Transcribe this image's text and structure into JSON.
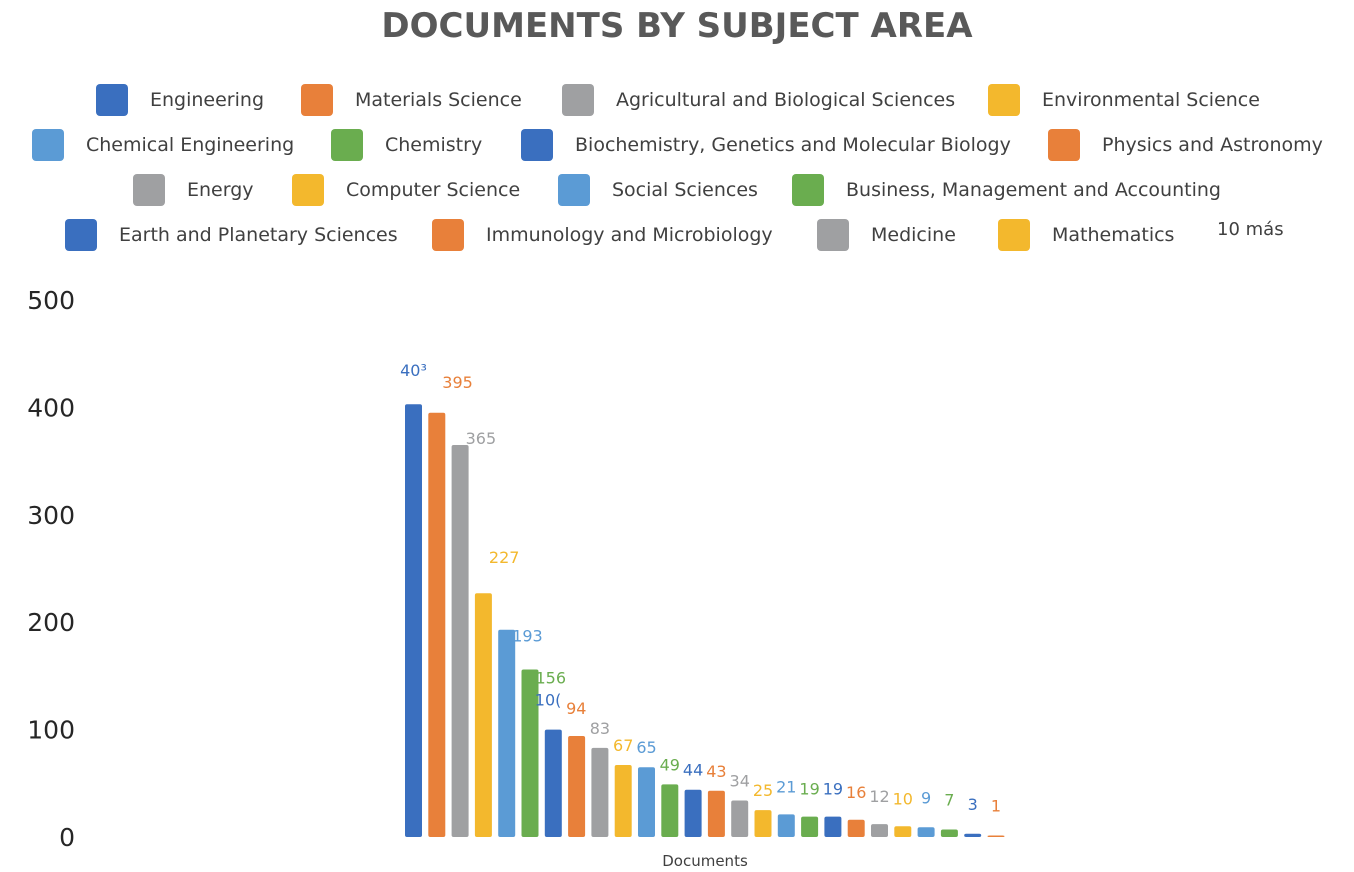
{
  "chart_data": {
    "type": "bar",
    "title": "DOCUMENTS BY SUBJECT AREA",
    "xlabel": "Documents",
    "ylabel": "",
    "ylim": [
      0,
      500
    ],
    "yticks": [
      0,
      100,
      200,
      300,
      400,
      500
    ],
    "grid": false,
    "legend_position": "top",
    "legend_more_label": "10 más",
    "categories": [
      "Documents"
    ],
    "series": [
      {
        "name": "Engineering",
        "value": 403,
        "label": "40³",
        "color": "#3a6fbf"
      },
      {
        "name": "Materials Science",
        "value": 395,
        "label": "395",
        "color": "#e8803a"
      },
      {
        "name": "Agricultural and Biological Sciences",
        "value": 365,
        "label": "365",
        "color": "#9fa0a2"
      },
      {
        "name": "Environmental Science",
        "value": 227,
        "label": "227",
        "color": "#f3b82d"
      },
      {
        "name": "Chemical Engineering",
        "value": 193,
        "label": "193",
        "color": "#5b9bd5"
      },
      {
        "name": "Chemistry",
        "value": 156,
        "label": "156",
        "color": "#6aad4f"
      },
      {
        "name": "Biochemistry, Genetics and Molecular Biology",
        "value": 100,
        "label": "10(",
        "color": "#3a6fbf"
      },
      {
        "name": "Physics and Astronomy",
        "value": 94,
        "label": "94",
        "color": "#e8803a"
      },
      {
        "name": "Energy",
        "value": 83,
        "label": "83",
        "color": "#9fa0a2"
      },
      {
        "name": "Computer Science",
        "value": 67,
        "label": "67",
        "color": "#f3b82d"
      },
      {
        "name": "Social Sciences",
        "value": 65,
        "label": "65",
        "color": "#5b9bd5"
      },
      {
        "name": "Business, Management and Accounting",
        "value": 49,
        "label": "49",
        "color": "#6aad4f"
      },
      {
        "name": "Earth and Planetary Sciences",
        "value": 44,
        "label": "44",
        "color": "#3a6fbf"
      },
      {
        "name": "Immunology and Microbiology",
        "value": 43,
        "label": "43",
        "color": "#e8803a"
      },
      {
        "name": "Medicine",
        "value": 34,
        "label": "34",
        "color": "#9fa0a2"
      },
      {
        "name": "Mathematics",
        "value": 25,
        "label": "25",
        "color": "#f3b82d"
      },
      {
        "value": 21,
        "label": "21",
        "color": "#5b9bd5"
      },
      {
        "value": 19,
        "label": "19",
        "color": "#6aad4f"
      },
      {
        "value": 19,
        "label": "19",
        "color": "#3a6fbf"
      },
      {
        "value": 16,
        "label": "16",
        "color": "#e8803a"
      },
      {
        "value": 12,
        "label": "12",
        "color": "#9fa0a2"
      },
      {
        "value": 10,
        "label": "10",
        "color": "#f3b82d"
      },
      {
        "value": 9,
        "label": "9",
        "color": "#5b9bd5"
      },
      {
        "value": 7,
        "label": "7",
        "color": "#6aad4f"
      },
      {
        "value": 3,
        "label": "3",
        "color": "#3a6fbf"
      },
      {
        "value": 1,
        "label": "1",
        "color": "#e8803a"
      }
    ]
  }
}
